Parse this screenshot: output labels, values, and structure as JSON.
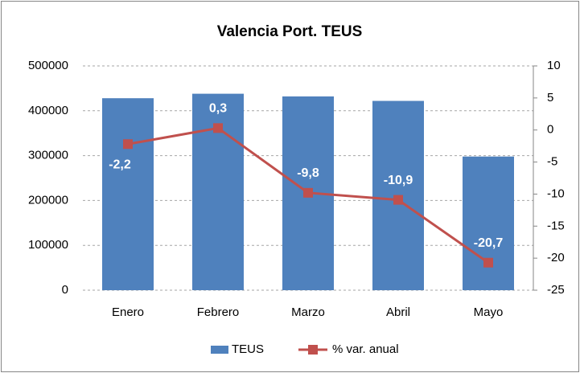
{
  "chart_data": {
    "type": "bar",
    "title": "Valencia Port. TEUS",
    "categories": [
      "Enero",
      "Febrero",
      "Marzo",
      "Abril",
      "Mayo"
    ],
    "series": [
      {
        "name": "TEUS",
        "type": "bar",
        "color": "#4f81bd",
        "values": [
          428000,
          438000,
          432000,
          422000,
          298000
        ]
      },
      {
        "name": "% var. anual",
        "type": "line",
        "axis": "y2",
        "color": "#c0504d",
        "values": [
          -2.2,
          0.3,
          -9.8,
          -10.9,
          -20.7
        ],
        "value_labels": [
          "-2,2",
          "0,3",
          "-9,8",
          "-10,9",
          "-20,7"
        ]
      }
    ],
    "ylim": [
      0,
      500000
    ],
    "yticks": [
      0,
      100000,
      200000,
      300000,
      400000,
      500000
    ],
    "y2lim": [
      -25,
      10
    ],
    "y2ticks": [
      -25,
      -20,
      -15,
      -10,
      -5,
      0,
      5,
      10
    ],
    "grid": true,
    "legend": "bottom"
  }
}
